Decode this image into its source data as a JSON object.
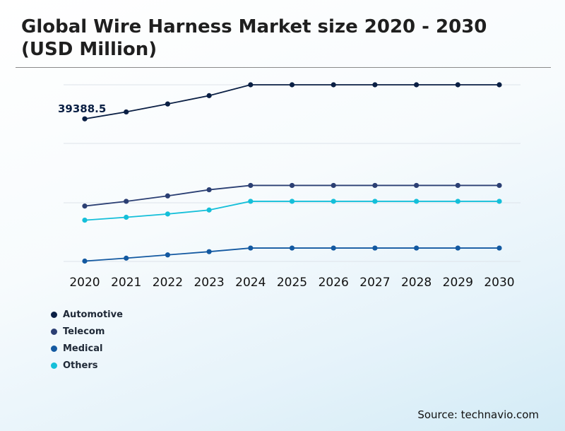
{
  "title": "Global Wire Harness Market size 2020 - 2030 (USD Million)",
  "source": "Source: technavio.com",
  "colors": {
    "Automotive": "#0a1f44",
    "Telecom": "#2b3f73",
    "Medical": "#1359a1",
    "Others": "#14bfd9"
  },
  "chart_data": {
    "type": "line",
    "title": "Global Wire Harness Market size 2020 - 2030 (USD Million)",
    "x": [
      "2020",
      "2021",
      "2022",
      "2023",
      "2024",
      "2025",
      "2026",
      "2027",
      "2028",
      "2029",
      "2030"
    ],
    "series": [
      {
        "name": "Automotive",
        "values": [
          39388.5,
          41300,
          43500,
          45800,
          48800,
          48800,
          48800,
          48800,
          48800,
          48800,
          48800
        ]
      },
      {
        "name": "Telecom",
        "values": [
          15300,
          16600,
          18100,
          19800,
          21000,
          21000,
          21000,
          21000,
          21000,
          21000,
          21000
        ]
      },
      {
        "name": "Others",
        "values": [
          11400,
          12200,
          13100,
          14200,
          16600,
          16600,
          16600,
          16600,
          16600,
          16600,
          16600
        ]
      },
      {
        "name": "Medical",
        "values": [
          100,
          900,
          1800,
          2700,
          3700,
          3700,
          3700,
          3700,
          3700,
          3700,
          3700
        ]
      }
    ],
    "annotations": [
      {
        "x": "2020",
        "series": "Automotive",
        "text": "39388.5"
      }
    ],
    "xlabel": "",
    "ylabel": "",
    "ylim": [
      0,
      60000
    ],
    "grid": true,
    "legend": "bottom-left"
  }
}
